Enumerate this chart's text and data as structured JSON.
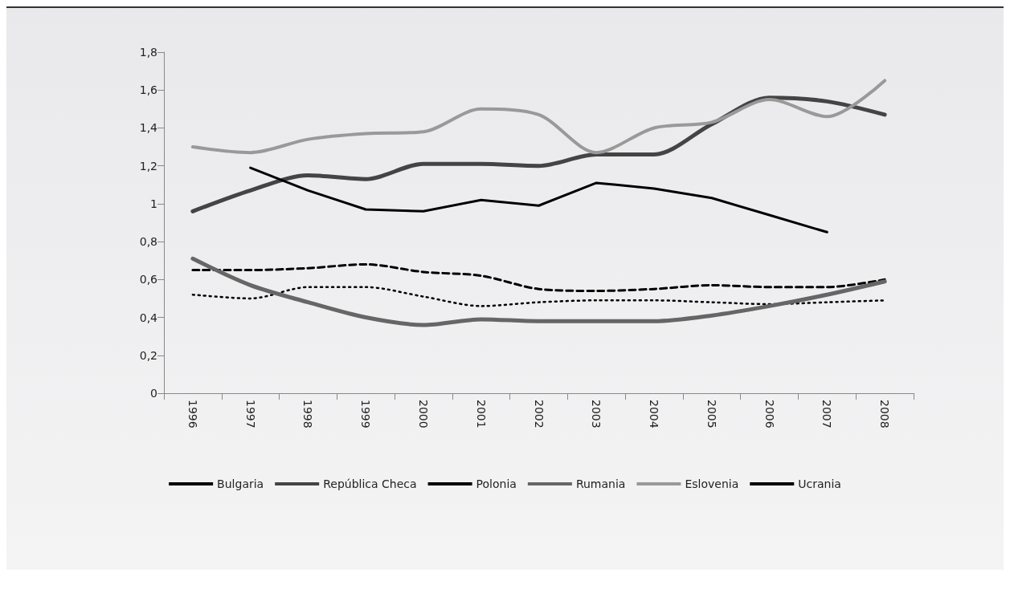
{
  "chart_data": {
    "type": "line",
    "categories": [
      "1996",
      "1997",
      "1998",
      "1999",
      "2000",
      "2001",
      "2002",
      "2003",
      "2004",
      "2005",
      "2006",
      "2007",
      "2008"
    ],
    "series": [
      {
        "name": "Bulgaria",
        "color": "#000000",
        "line_style": "dotted",
        "values": [
          0.52,
          0.5,
          0.56,
          0.56,
          0.51,
          0.46,
          0.48,
          0.49,
          0.49,
          0.48,
          0.47,
          0.48,
          0.49
        ]
      },
      {
        "name": "República Checa",
        "color": "#444444",
        "line_style": "solid",
        "values": [
          0.96,
          1.07,
          1.15,
          1.13,
          1.21,
          1.21,
          1.2,
          1.26,
          1.26,
          1.42,
          1.56,
          1.54,
          1.47
        ]
      },
      {
        "name": "Polonia",
        "color": "#000000",
        "line_style": "dashed",
        "values": [
          0.65,
          0.65,
          0.66,
          0.68,
          0.64,
          0.62,
          0.55,
          0.54,
          0.55,
          0.57,
          0.56,
          0.56,
          0.6
        ]
      },
      {
        "name": "Rumania",
        "color": "#666666",
        "line_style": "solid",
        "values": [
          0.71,
          0.57,
          0.48,
          0.4,
          0.36,
          0.39,
          0.38,
          0.38,
          0.38,
          0.41,
          0.46,
          0.52,
          0.59
        ]
      },
      {
        "name": "Eslovenia",
        "color": "#999999",
        "line_style": "solid",
        "values": [
          1.3,
          1.27,
          1.34,
          1.37,
          1.38,
          1.5,
          1.47,
          1.27,
          1.4,
          1.43,
          1.55,
          1.46,
          1.65
        ]
      },
      {
        "name": "Ucrania",
        "color": "#000000",
        "line_style": "solid",
        "values": [
          null,
          1.19,
          1.07,
          0.97,
          0.96,
          1.02,
          0.99,
          1.11,
          1.08,
          1.03,
          0.94,
          0.85,
          null
        ]
      }
    ],
    "ylim": [
      0,
      1.8
    ],
    "yticks": [
      0,
      {
        "value": 0.2,
        "label": "0,2"
      },
      {
        "value": 0.4,
        "label": "0,4"
      },
      {
        "value": 0.6,
        "label": "0,6"
      },
      {
        "value": 0.8,
        "label": "0,8"
      },
      1,
      {
        "value": 1.2,
        "label": "1,2"
      },
      {
        "value": 1.4,
        "label": "1,4"
      },
      {
        "value": 1.6,
        "label": "1,6"
      },
      {
        "value": 1.8,
        "label": "1,8"
      }
    ],
    "grid": false,
    "legend": "bottom",
    "marker": "none"
  }
}
